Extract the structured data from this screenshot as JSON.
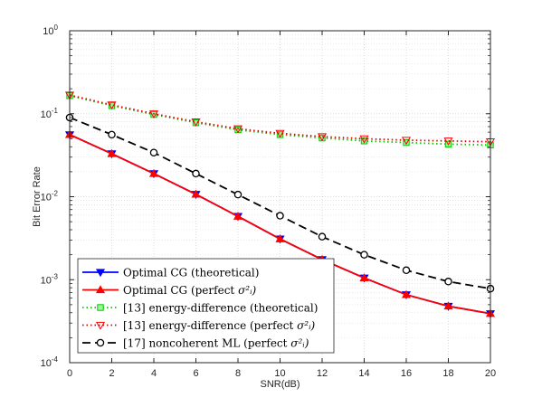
{
  "chart_data": {
    "type": "line",
    "xlabel": "SNR(dB)",
    "ylabel": "Bit Error Rate",
    "xlim": [
      0,
      20
    ],
    "ylim": [
      0.0001,
      1
    ],
    "yscale": "log",
    "grid": true,
    "legend_position": "bottom-left",
    "x_ticks": [
      "0",
      "2",
      "4",
      "6",
      "8",
      "10",
      "12",
      "14",
      "16",
      "18",
      "20"
    ],
    "y_ticks": [
      {
        "base": "10",
        "exp": "0"
      },
      {
        "base": "10",
        "exp": "-1"
      },
      {
        "base": "10",
        "exp": "-2"
      },
      {
        "base": "10",
        "exp": "-3"
      },
      {
        "base": "10",
        "exp": "-4"
      }
    ],
    "x": [
      0,
      2,
      4,
      6,
      8,
      10,
      12,
      14,
      16,
      18,
      20
    ],
    "series": [
      {
        "legend_main": "Optimal CG (theoretical)",
        "legend_math": "",
        "color": "#0000ff",
        "dash": "",
        "marker": "tri-down",
        "marker_fill": "#0000ff",
        "marker_stroke": "#0000ff",
        "values": [
          0.056,
          0.033,
          0.019,
          0.0107,
          0.0058,
          0.0031,
          0.00175,
          0.00105,
          0.00066,
          0.00048,
          0.00039
        ]
      },
      {
        "legend_main": "Optimal CG (perfect ",
        "legend_math": "σ²ᵢ)",
        "color": "#ff0000",
        "dash": "",
        "marker": "tri-up",
        "marker_fill": "#ff0000",
        "marker_stroke": "#ff0000",
        "values": [
          0.056,
          0.033,
          0.019,
          0.0107,
          0.0058,
          0.0031,
          0.00175,
          0.00105,
          0.00066,
          0.00048,
          0.00039
        ]
      },
      {
        "legend_main": "[13] energy-difference (theoretical)",
        "legend_math": "",
        "color": "#00cc00",
        "dash": "1.5,3",
        "marker": "square",
        "marker_fill": "#9ff59f",
        "marker_stroke": "#00cc00",
        "values": [
          0.165,
          0.125,
          0.098,
          0.078,
          0.064,
          0.056,
          0.051,
          0.047,
          0.045,
          0.043,
          0.042
        ]
      },
      {
        "legend_main": "[13] energy-difference (perfect ",
        "legend_math": "σ²ᵢ)",
        "color": "#dd0000",
        "dash": "1.5,3",
        "marker": "tri-down",
        "marker_fill": "none",
        "marker_stroke": "#ff0000",
        "values": [
          0.168,
          0.128,
          0.1,
          0.08,
          0.066,
          0.058,
          0.053,
          0.05,
          0.048,
          0.047,
          0.046
        ]
      },
      {
        "legend_main": "[17] noncoherent ML (perfect ",
        "legend_math": "σ²ᵢ)",
        "color": "#000000",
        "dash": "9,5",
        "marker": "circle",
        "marker_fill": "#ffffff",
        "marker_stroke": "#000000",
        "values": [
          0.09,
          0.056,
          0.034,
          0.019,
          0.0106,
          0.0059,
          0.0033,
          0.002,
          0.0013,
          0.00095,
          0.00078
        ]
      }
    ]
  }
}
